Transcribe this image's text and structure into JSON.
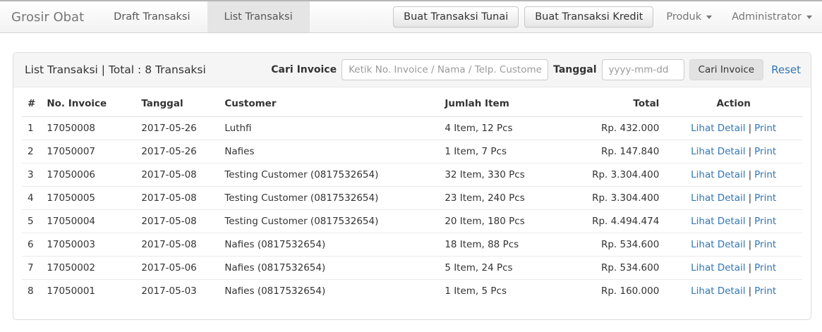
{
  "navbar": {
    "brand": "Grosir Obat",
    "nav_items": [
      {
        "label": "Draft Transaksi"
      },
      {
        "label": "List Transaksi"
      }
    ],
    "buttons": {
      "tunai": "Buat Transaksi Tunai",
      "kredit": "Buat Transaksi Kredit"
    },
    "dropdowns": {
      "produk": "Produk",
      "user": "Administrator"
    }
  },
  "panel": {
    "title": "List Transaksi | Total : 8 Transaksi",
    "search": {
      "invoice_label": "Cari Invoice",
      "invoice_placeholder": "Ketik No. Invoice / Nama / Telp. Customer..",
      "invoice_value": "",
      "date_label": "Tanggal",
      "date_placeholder": "yyyy-mm-dd",
      "date_value": "",
      "search_button": "Cari Invoice",
      "reset_link": "Reset"
    }
  },
  "table": {
    "headers": {
      "num": "#",
      "invoice": "No. Invoice",
      "tanggal": "Tanggal",
      "customer": "Customer",
      "jumlah": "Jumlah Item",
      "total": "Total",
      "action": "Action"
    },
    "action": {
      "detail": "Lihat Detail",
      "separator": "|",
      "print": "Print"
    },
    "rows": [
      {
        "num": "1",
        "invoice": "17050008",
        "tanggal": "2017-05-26",
        "customer": "Luthfi",
        "jumlah": "4 Item, 12 Pcs",
        "total": "Rp. 432.000"
      },
      {
        "num": "2",
        "invoice": "17050007",
        "tanggal": "2017-05-26",
        "customer": "Nafies",
        "jumlah": "1 Item, 7 Pcs",
        "total": "Rp. 147.840"
      },
      {
        "num": "3",
        "invoice": "17050006",
        "tanggal": "2017-05-08",
        "customer": "Testing Customer (0817532654)",
        "jumlah": "32 Item, 330 Pcs",
        "total": "Rp. 3.304.400"
      },
      {
        "num": "4",
        "invoice": "17050005",
        "tanggal": "2017-05-08",
        "customer": "Testing Customer (0817532654)",
        "jumlah": "23 Item, 240 Pcs",
        "total": "Rp. 3.304.400"
      },
      {
        "num": "5",
        "invoice": "17050004",
        "tanggal": "2017-05-08",
        "customer": "Testing Customer (0817532654)",
        "jumlah": "20 Item, 180 Pcs",
        "total": "Rp. 4.494.474"
      },
      {
        "num": "6",
        "invoice": "17050003",
        "tanggal": "2017-05-08",
        "customer": "Nafies (0817532654)",
        "jumlah": "18 Item, 88 Pcs",
        "total": "Rp. 534.600"
      },
      {
        "num": "7",
        "invoice": "17050002",
        "tanggal": "2017-05-06",
        "customer": "Nafies (0817532654)",
        "jumlah": "5 Item, 24 Pcs",
        "total": "Rp. 534.600"
      },
      {
        "num": "8",
        "invoice": "17050001",
        "tanggal": "2017-05-03",
        "customer": "Nafies (0817532654)",
        "jumlah": "1 Item, 5 Pcs",
        "total": "Rp. 160.000"
      }
    ]
  },
  "colors": {
    "link_blue": "#3176b5",
    "active_tab_bg": "#e5e5e5",
    "panel_header_bg": "#f5f5f5",
    "navbar_border": "#d4d4d4"
  }
}
